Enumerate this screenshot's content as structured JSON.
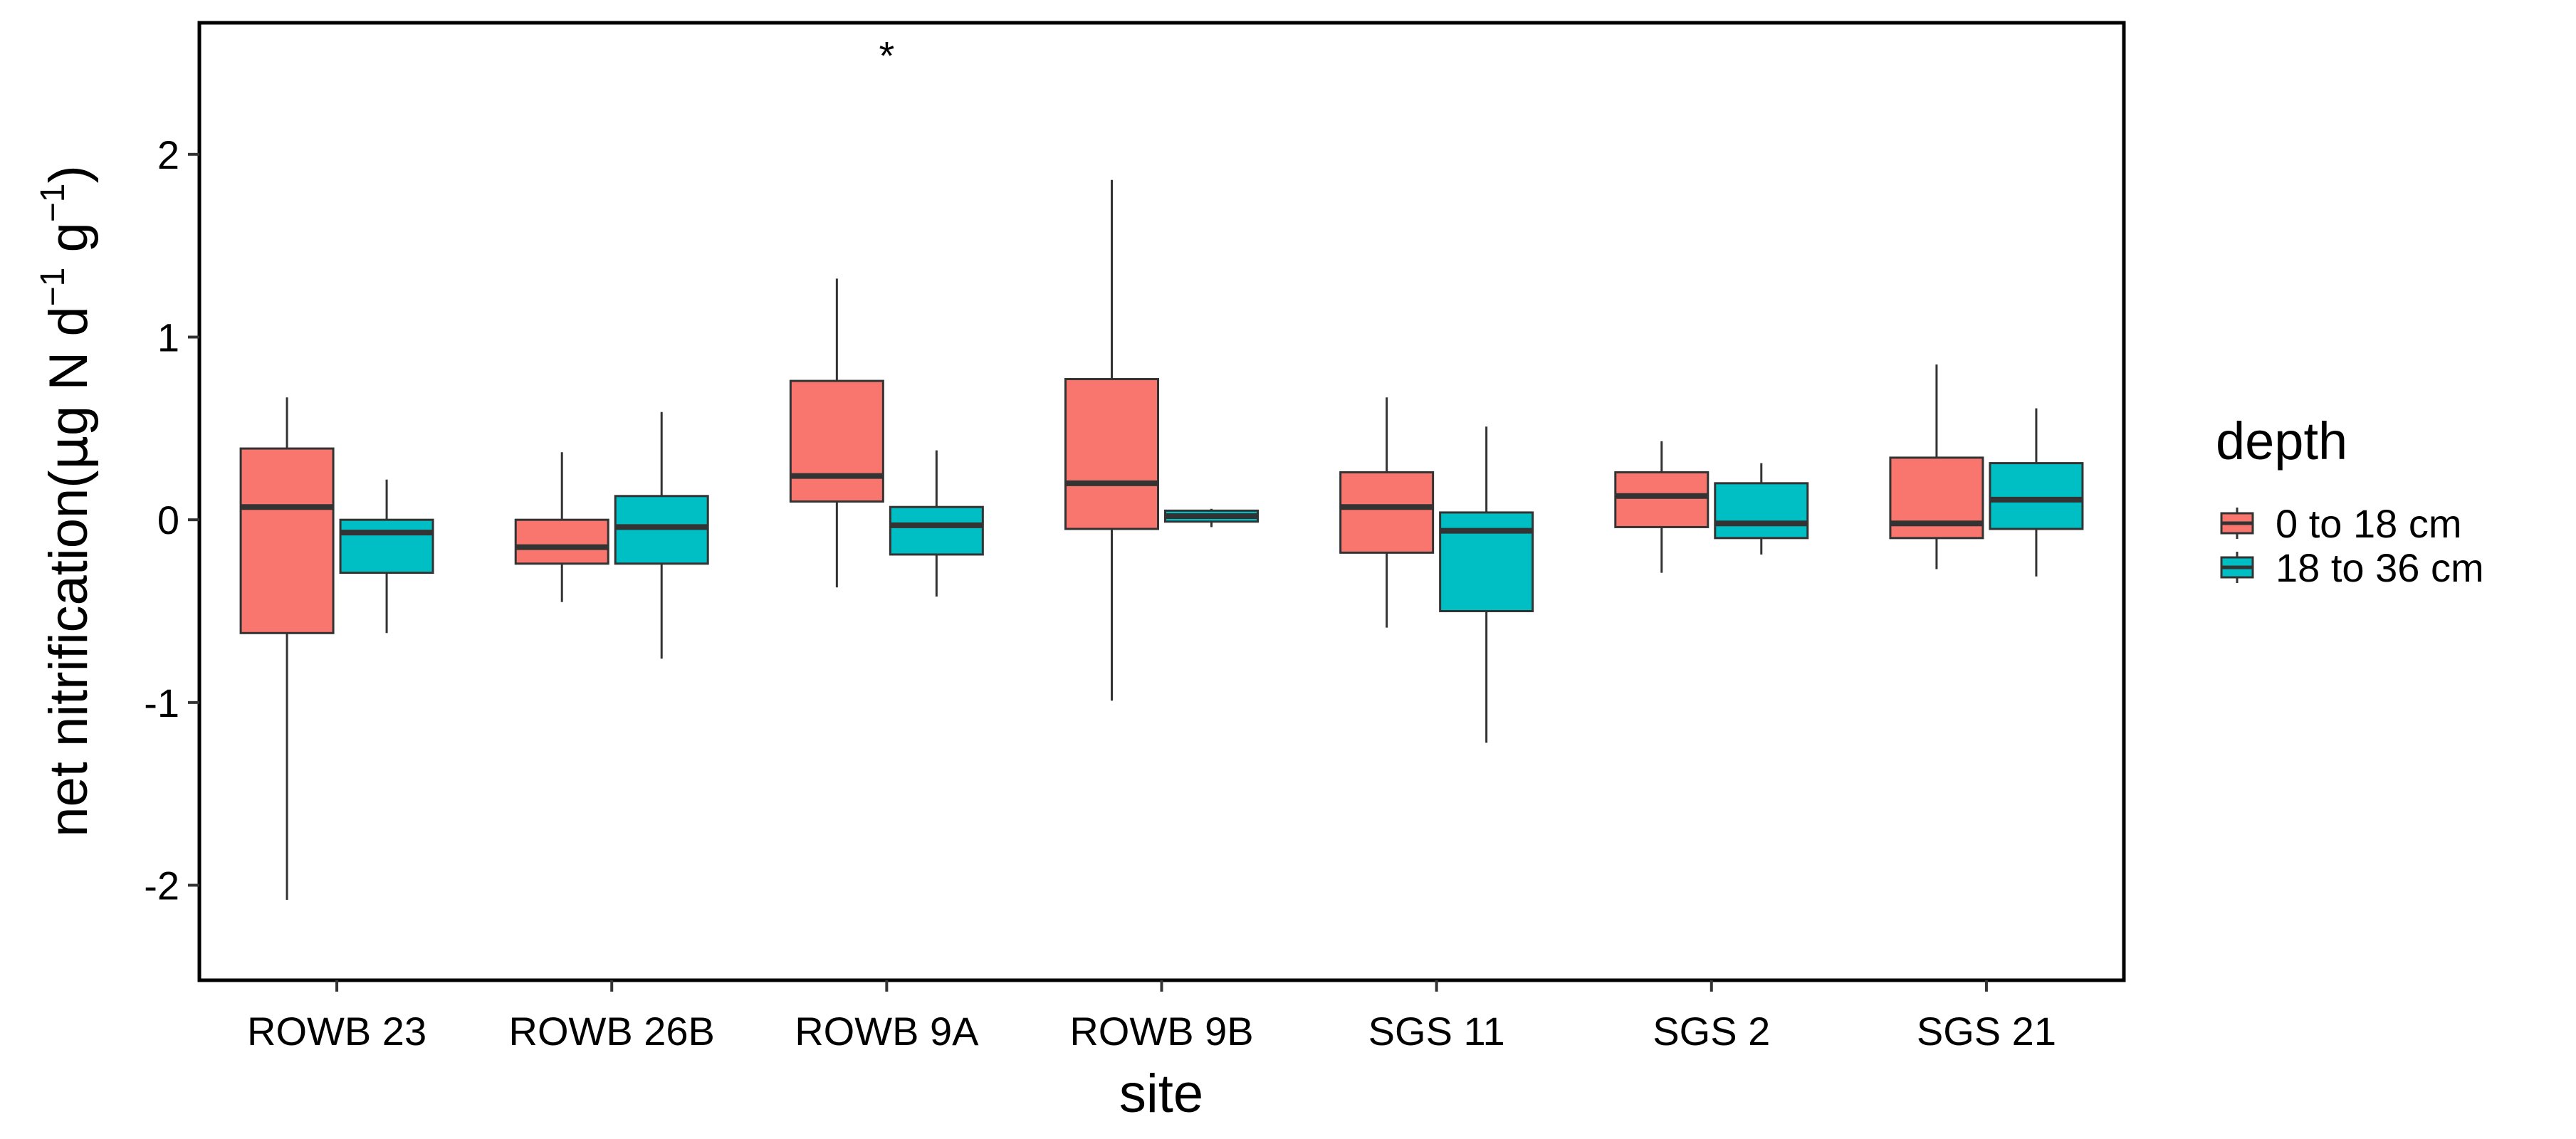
{
  "chart_data": {
    "type": "boxplot",
    "title": "",
    "xlabel": "site",
    "ylabel_main": "net nitrification(",
    "ylabel_mu": "μ",
    "ylabel_g": "g N d",
    "ylabel_sup1": "−1",
    "ylabel_g2": " g",
    "ylabel_sup2": "−1",
    "ylabel_close": ")",
    "ylim": [
      -2.52,
      2.72
    ],
    "yticks": [
      2,
      1,
      0,
      -1,
      -2
    ],
    "ytick_labels": [
      "2",
      "1",
      "0",
      "-1",
      "-2"
    ],
    "categories": [
      "ROWB 23",
      "ROWB 26B",
      "ROWB 9A",
      "ROWB 9B",
      "SGS 11",
      "SGS 2",
      "SGS 21"
    ],
    "legend": {
      "title": "depth",
      "position": "right",
      "entries": [
        "0 to 18 cm",
        "18 to 36 cm"
      ]
    },
    "annotations": [
      {
        "text": "*",
        "category": "ROWB 9A",
        "y": 2.62
      }
    ],
    "series": [
      {
        "name": "0 to 18 cm",
        "color": "#F8766D",
        "boxes": [
          {
            "min": -2.08,
            "q1": -0.62,
            "median": 0.07,
            "q3": 0.39,
            "max": 0.67
          },
          {
            "min": -0.45,
            "q1": -0.24,
            "median": -0.15,
            "q3": 0.0,
            "max": 0.37
          },
          {
            "min": -0.37,
            "q1": 0.1,
            "median": 0.24,
            "q3": 0.76,
            "max": 1.32
          },
          {
            "min": -0.99,
            "q1": -0.05,
            "median": 0.2,
            "q3": 0.77,
            "max": 1.86
          },
          {
            "min": -0.59,
            "q1": -0.18,
            "median": 0.07,
            "q3": 0.26,
            "max": 0.67
          },
          {
            "min": -0.29,
            "q1": -0.04,
            "median": 0.13,
            "q3": 0.26,
            "max": 0.43
          },
          {
            "min": -0.27,
            "q1": -0.1,
            "median": -0.02,
            "q3": 0.34,
            "max": 0.85
          }
        ]
      },
      {
        "name": "18 to 36 cm",
        "color": "#00BFC4",
        "boxes": [
          {
            "min": -0.62,
            "q1": -0.29,
            "median": -0.07,
            "q3": 0.0,
            "max": 0.22
          },
          {
            "min": -0.76,
            "q1": -0.24,
            "median": -0.04,
            "q3": 0.13,
            "max": 0.59
          },
          {
            "min": -0.42,
            "q1": -0.19,
            "median": -0.03,
            "q3": 0.07,
            "max": 0.38
          },
          {
            "min": -0.04,
            "q1": -0.01,
            "median": 0.02,
            "q3": 0.05,
            "max": 0.06
          },
          {
            "min": -1.22,
            "q1": -0.5,
            "median": -0.06,
            "q3": 0.04,
            "max": 0.51
          },
          {
            "min": -0.19,
            "q1": -0.1,
            "median": -0.02,
            "q3": 0.2,
            "max": 0.31
          },
          {
            "min": -0.31,
            "q1": -0.05,
            "median": 0.11,
            "q3": 0.31,
            "max": 0.61
          }
        ]
      }
    ]
  }
}
